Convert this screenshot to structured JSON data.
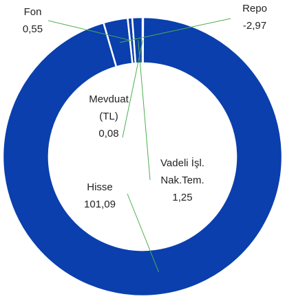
{
  "chart_data": {
    "type": "pie",
    "inner_radius_ratio": 0.67,
    "color": "#0a3fad",
    "categories": [
      "Mevduat (TL)",
      "Hisse",
      "Repo",
      "Fon",
      "Vadeli İşl. Nak.Tem."
    ],
    "values": [
      0.08,
      101.09,
      -2.97,
      0.55,
      1.25
    ],
    "value_labels": [
      "0,08",
      "101,09",
      "-2,97",
      "0,55",
      "1,25"
    ]
  }
}
